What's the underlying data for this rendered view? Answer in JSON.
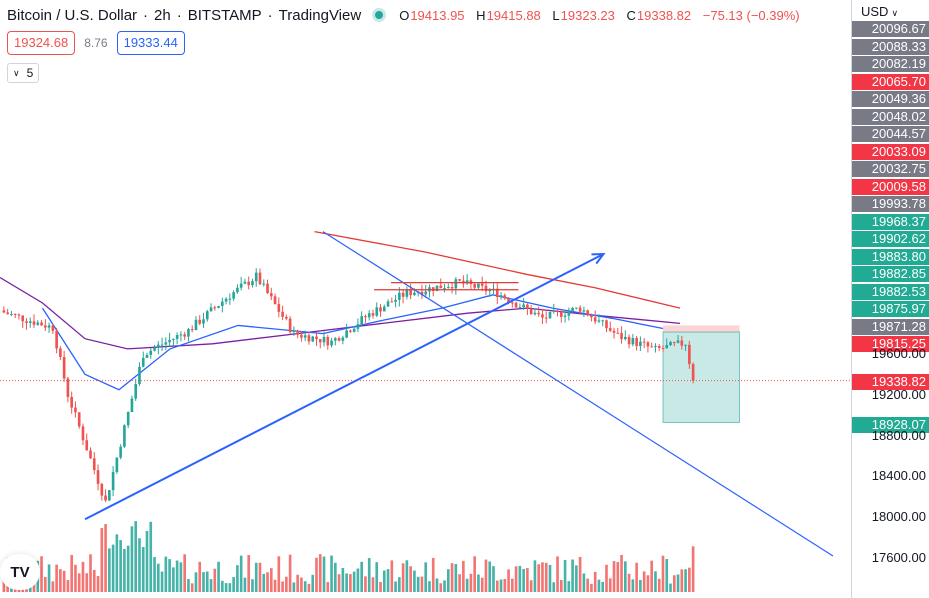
{
  "header": {
    "symbol": "Bitcoin / U.S. Dollar",
    "interval": "2h",
    "exchange": "BITSTAMP",
    "source": "TradingView",
    "ohlc": {
      "o_key": "O",
      "open": "19413.95",
      "h_key": "H",
      "high": "19415.88",
      "l_key": "L",
      "low": "19323.23",
      "c_key": "C",
      "close": "19338.82",
      "change": "−75.13 (−0.39%)"
    }
  },
  "quote": {
    "bid": "19324.68",
    "spread": "8.76",
    "ask": "19333.44"
  },
  "indicators_toggle": {
    "count": "5"
  },
  "axis": {
    "currency": "USD",
    "labels": [
      {
        "text": "20096.67",
        "style": "gray",
        "value": 20096.67
      },
      {
        "text": "20088.33",
        "style": "gray",
        "value": 20088.33
      },
      {
        "text": "20082.19",
        "style": "gray",
        "value": 20082.19
      },
      {
        "text": "20065.70",
        "style": "red",
        "value": 20065.7
      },
      {
        "text": "20049.36",
        "style": "gray",
        "value": 20049.36
      },
      {
        "text": "20048.02",
        "style": "gray",
        "value": 20048.02
      },
      {
        "text": "20044.57",
        "style": "gray",
        "value": 20044.57
      },
      {
        "text": "20033.09",
        "style": "red",
        "value": 20033.09
      },
      {
        "text": "20032.75",
        "style": "gray",
        "value": 20032.75
      },
      {
        "text": "20009.58",
        "style": "red",
        "value": 20009.58
      },
      {
        "text": "19993.78",
        "style": "gray",
        "value": 19993.78
      },
      {
        "text": "19968.37",
        "style": "green",
        "value": 19968.37
      },
      {
        "text": "19902.62",
        "style": "green",
        "value": 19902.62
      },
      {
        "text": "19883.80",
        "style": "green",
        "value": 19883.8
      },
      {
        "text": "19882.85",
        "style": "green",
        "value": 19882.85
      },
      {
        "text": "19882.53",
        "style": "green",
        "value": 19882.53
      },
      {
        "text": "19875.97",
        "style": "green",
        "value": 19875.97
      },
      {
        "text": "19871.28",
        "style": "gray",
        "value": 19871.28
      },
      {
        "text": "19815.25",
        "style": "red",
        "value": 19815.25
      }
    ],
    "ticks": [
      "19600.00",
      "19200.00",
      "18800.00",
      "18400.00",
      "18000.00",
      "17600.00"
    ],
    "last_price": "19338.82",
    "target": "18928.07"
  },
  "colors": {
    "up": "#26a69a",
    "down": "#ef5350",
    "trendline": "#2962ff",
    "ma_slow": "#e53935",
    "ma_mid": "#7b1fa2",
    "ma_fast": "#2962ff",
    "target_zone": "#26a69a",
    "stop_zone": "#ef5350"
  },
  "chart_data": {
    "type": "candlestick",
    "title": "Bitcoin / U.S. Dollar",
    "interval": "2h",
    "ylim": [
      17500,
      20800
    ],
    "y_ticks": [
      17600,
      18000,
      18400,
      18800,
      19200,
      19600
    ],
    "last_close": 19338.82,
    "segments": [
      {
        "bars": 6,
        "from": 20020,
        "to": 19950
      },
      {
        "bars": 8,
        "from": 19950,
        "to": 19860
      },
      {
        "bars": 4,
        "from": 19860,
        "to": 19200
      },
      {
        "bars": 10,
        "from": 19200,
        "to": 18150
      },
      {
        "bars": 10,
        "from": 18150,
        "to": 19600
      },
      {
        "bars": 12,
        "from": 19600,
        "to": 19830
      },
      {
        "bars": 10,
        "from": 19830,
        "to": 20150
      },
      {
        "bars": 8,
        "from": 20150,
        "to": 20360
      },
      {
        "bars": 10,
        "from": 20360,
        "to": 19800
      },
      {
        "bars": 10,
        "from": 19800,
        "to": 19720
      },
      {
        "bars": 10,
        "from": 19720,
        "to": 19990
      },
      {
        "bars": 10,
        "from": 19990,
        "to": 20200
      },
      {
        "bars": 14,
        "from": 20200,
        "to": 20300
      },
      {
        "bars": 10,
        "from": 20300,
        "to": 20200
      },
      {
        "bars": 12,
        "from": 20200,
        "to": 19950
      },
      {
        "bars": 10,
        "from": 19950,
        "to": 20050
      },
      {
        "bars": 10,
        "from": 20050,
        "to": 19780
      },
      {
        "bars": 10,
        "from": 19780,
        "to": 19640
      },
      {
        "bars": 8,
        "from": 19640,
        "to": 19710
      },
      {
        "bars": 2,
        "from": 19710,
        "to": 19338.82
      }
    ],
    "moving_averages": [
      {
        "color": "#e53935",
        "points": [
          [
            0.37,
            20800
          ],
          [
            0.5,
            20600
          ],
          [
            0.62,
            20380
          ],
          [
            0.7,
            20250
          ],
          [
            0.8,
            20050
          ]
        ]
      },
      {
        "color": "#7b1fa2",
        "points": [
          [
            0,
            20350
          ],
          [
            0.05,
            20100
          ],
          [
            0.1,
            19750
          ],
          [
            0.15,
            19650
          ],
          [
            0.25,
            19700
          ],
          [
            0.35,
            19800
          ],
          [
            0.45,
            19900
          ],
          [
            0.55,
            20000
          ],
          [
            0.62,
            20050
          ],
          [
            0.7,
            19980
          ],
          [
            0.8,
            19900
          ]
        ]
      },
      {
        "color": "#2962ff",
        "points": [
          [
            0.05,
            20050
          ],
          [
            0.1,
            19400
          ],
          [
            0.14,
            19250
          ],
          [
            0.2,
            19650
          ],
          [
            0.28,
            19880
          ],
          [
            0.38,
            19800
          ],
          [
            0.45,
            19930
          ],
          [
            0.52,
            20050
          ],
          [
            0.58,
            20180
          ],
          [
            0.65,
            20050
          ],
          [
            0.72,
            19950
          ],
          [
            0.78,
            19850
          ]
        ]
      }
    ],
    "trendlines": [
      {
        "color": "#2962ff",
        "from": [
          0.1,
          17980
        ],
        "to": [
          0.71,
          20580
        ],
        "arrow": true
      },
      {
        "color": "#2962ff",
        "from": [
          0.38,
          20800
        ],
        "to": [
          0.98,
          17620
        ],
        "arrow": false
      }
    ],
    "horizontal_levels": [
      {
        "color": "#e53935",
        "from": 0.46,
        "to": 0.61,
        "value": 20300
      },
      {
        "color": "#e53935",
        "from": 0.44,
        "to": 0.61,
        "value": 20230
      }
    ],
    "position": {
      "entry": 19815.25,
      "stop": 19880,
      "target": 18928.07,
      "from": 0.78,
      "to": 0.87
    }
  }
}
